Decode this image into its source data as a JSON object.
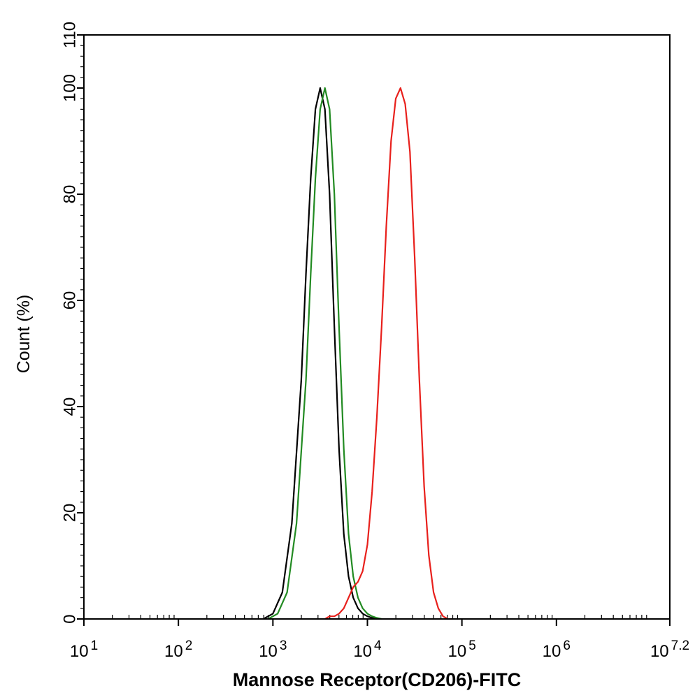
{
  "chart_data": {
    "type": "line",
    "title": "",
    "xlabel": "Mannose Receptor(CD206)-FITC",
    "ylabel": "Count  (%)",
    "x_scale": "log10",
    "xlim": [
      10,
      15848931.92
    ],
    "ylim": [
      0,
      110
    ],
    "x_ticks": [
      {
        "value": 10,
        "base": "10",
        "exp": "1"
      },
      {
        "value": 100,
        "base": "10",
        "exp": "2"
      },
      {
        "value": 1000,
        "base": "10",
        "exp": "3"
      },
      {
        "value": 10000,
        "base": "10",
        "exp": "4"
      },
      {
        "value": 100000,
        "base": "10",
        "exp": "5"
      },
      {
        "value": 1000000,
        "base": "10",
        "exp": "6"
      },
      {
        "value": 15848931.92,
        "base": "10",
        "exp": "7.2"
      }
    ],
    "y_ticks": [
      {
        "value": 0,
        "label": "0"
      },
      {
        "value": 20,
        "label": "20"
      },
      {
        "value": 40,
        "label": "40"
      },
      {
        "value": 60,
        "label": "60"
      },
      {
        "value": 80,
        "label": "80"
      },
      {
        "value": 100,
        "label": "100"
      },
      {
        "value": 110,
        "label": "110"
      }
    ],
    "grid": false,
    "legend": "none",
    "series": [
      {
        "color": "#000000",
        "x": [
          794,
          1000,
          1259,
          1585,
          1995,
          2239,
          2512,
          2818,
          3162,
          3548,
          3981,
          4467,
          5012,
          5623,
          6310,
          7079,
          7943,
          8913,
          10000,
          11220,
          12589
        ],
        "y": [
          0,
          1,
          5,
          18,
          45,
          65,
          83,
          96,
          100,
          96,
          80,
          55,
          32,
          16,
          8,
          4,
          2,
          1,
          0.5,
          0.2,
          0
        ]
      },
      {
        "color": "#228B22",
        "x": [
          891,
          1122,
          1413,
          1778,
          2239,
          2512,
          2818,
          3162,
          3548,
          3981,
          4467,
          5012,
          5623,
          6310,
          7079,
          7943,
          8913,
          10000,
          11220,
          12589,
          14125
        ],
        "y": [
          0,
          1,
          5,
          18,
          45,
          65,
          83,
          96,
          100,
          96,
          80,
          55,
          32,
          16,
          8,
          4,
          2,
          1,
          0.5,
          0.2,
          0
        ]
      },
      {
        "color": "#e8201c",
        "x": [
          3548,
          3981,
          4467,
          5012,
          5623,
          6310,
          7079,
          7943,
          8913,
          10000,
          11220,
          12589,
          14125,
          15849,
          17783,
          19953,
          22387,
          25119,
          28184,
          31623,
          35481,
          39811,
          44668,
          50119,
          56234,
          63096,
          70795,
          79433
        ],
        "y": [
          0,
          0.5,
          0.5,
          1,
          2,
          4,
          6,
          7,
          9,
          14,
          24,
          38,
          55,
          74,
          90,
          98,
          100,
          97,
          88,
          68,
          45,
          25,
          12,
          5,
          2,
          0.5,
          0,
          0
        ]
      }
    ]
  }
}
